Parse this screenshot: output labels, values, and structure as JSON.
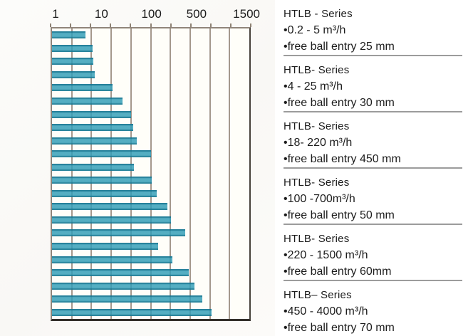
{
  "chart_data": {
    "type": "bar",
    "orientation": "horizontal",
    "title": "",
    "xlabel": "",
    "ylabel": "",
    "unit": "m³/h",
    "x_axis": {
      "position": "top",
      "scale": "logarithmic (approximate, hand-drawn)",
      "tick_labels": [
        "1",
        "10",
        "100",
        "500",
        "1500"
      ],
      "tick_pcts": [
        2.5,
        25.4,
        50.4,
        72.9,
        97.9
      ]
    },
    "grid": "vertical gridlines, 10 equal intervals",
    "gridline_pcts": [
      10,
      20,
      30,
      40,
      50,
      60,
      70,
      80,
      90
    ],
    "bar_color_mid": "#34a0b8",
    "bar_color_edge": "#14768f",
    "gridline_color": "#a5988c",
    "bars": [
      {
        "value_est": 4.5,
        "length_pct": 17.1
      },
      {
        "value_est": 6.3,
        "length_pct": 20.7
      },
      {
        "value_est": 6.5,
        "length_pct": 21.1
      },
      {
        "value_est": 7,
        "length_pct": 21.8
      },
      {
        "value_est": 16,
        "length_pct": 30.7
      },
      {
        "value_est": 26,
        "length_pct": 35.7
      },
      {
        "value_est": 39,
        "length_pct": 40.0
      },
      {
        "value_est": 43,
        "length_pct": 41.1
      },
      {
        "value_est": 50,
        "length_pct": 42.9
      },
      {
        "value_est": 100,
        "length_pct": 50.0
      },
      {
        "value_est": 44,
        "length_pct": 41.4
      },
      {
        "value_est": 105,
        "length_pct": 50.7
      },
      {
        "value_est": 120,
        "length_pct": 52.9
      },
      {
        "value_est": 180,
        "length_pct": 58.6
      },
      {
        "value_est": 205,
        "length_pct": 60.4
      },
      {
        "value_est": 340,
        "length_pct": 67.5
      },
      {
        "value_est": 130,
        "length_pct": 53.9
      },
      {
        "value_est": 215,
        "length_pct": 61.1
      },
      {
        "value_est": 390,
        "length_pct": 69.3
      },
      {
        "value_est": 475,
        "length_pct": 72.1
      },
      {
        "value_est": 575,
        "length_pct": 76.1
      },
      {
        "value_est": 705,
        "length_pct": 80.7
      }
    ]
  },
  "panel": {
    "blocks": [
      {
        "title": "HTLB - Series",
        "flow": "•0.2 - 5 m³/h",
        "ball": "•free ball entry 25 mm"
      },
      {
        "title": "HTLB- Series",
        "flow": "•4 - 25 m³/h",
        "ball": "•free ball entry 30 mm"
      },
      {
        "title": "HTLB- Series",
        "flow": "•18- 220 m³/h",
        "ball": "•free ball entry 450 mm"
      },
      {
        "title": "HTLB- Series",
        "flow": "•100 -700m³/h",
        "ball": "•free ball entry 50 mm"
      },
      {
        "title": "HTLB- Series",
        "flow": "•220 - 1500 m³/h",
        "ball": "•free ball entry 60mm"
      },
      {
        "title": "HTLB– Series",
        "flow": "•450 - 4000 m³/h",
        "ball": "•free ball entry 70 mm"
      }
    ]
  },
  "colors": {
    "separator": "#9c9c9c",
    "text": "#1c1c1c",
    "plot_background": "#fffef9",
    "border_light": "#90857a",
    "border_dark": "#332f2a"
  }
}
